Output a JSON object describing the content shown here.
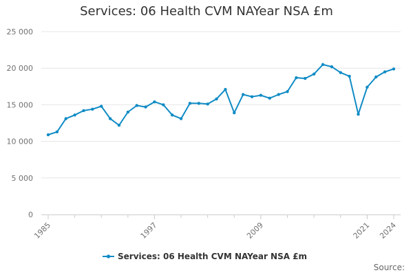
{
  "chart_data": {
    "type": "line",
    "title": "Services: 06 Health CVM NAYear NSA £m",
    "xlabel": "",
    "ylabel": "",
    "ylim": [
      0,
      25000
    ],
    "yticks": [
      0,
      5000,
      10000,
      15000,
      20000,
      25000
    ],
    "ytick_labels": [
      "0",
      "5 000",
      "10 000",
      "15 000",
      "20 000",
      "25 000"
    ],
    "xlim": [
      1985,
      2024
    ],
    "xtick_values": [
      1985,
      1997,
      2009,
      2021,
      2024
    ],
    "xtick_labels": [
      "1985",
      "1997",
      "2009",
      "2021",
      "2024"
    ],
    "grid": true,
    "legend_position": "bottom",
    "series": [
      {
        "name": "Services: 06 Health CVM NAYear NSA £m",
        "color": "#0f8bc5",
        "x": [
          1985,
          1986,
          1987,
          1988,
          1989,
          1990,
          1991,
          1992,
          1993,
          1994,
          1995,
          1996,
          1997,
          1998,
          1999,
          2000,
          2001,
          2002,
          2003,
          2004,
          2005,
          2006,
          2007,
          2008,
          2009,
          2010,
          2011,
          2012,
          2013,
          2014,
          2015,
          2016,
          2017,
          2018,
          2019,
          2020,
          2021,
          2022,
          2023,
          2024
        ],
        "values": [
          10900,
          11300,
          13100,
          13600,
          14200,
          14400,
          14800,
          13100,
          12200,
          14000,
          14900,
          14700,
          15400,
          15000,
          13600,
          13100,
          15200,
          15200,
          15100,
          15800,
          17100,
          13900,
          16400,
          16100,
          16300,
          15900,
          16400,
          16800,
          18700,
          18600,
          19200,
          20500,
          20200,
          19400,
          18900,
          13700,
          17400,
          18800,
          19500,
          19900
        ]
      }
    ]
  },
  "source_label": "Source:"
}
